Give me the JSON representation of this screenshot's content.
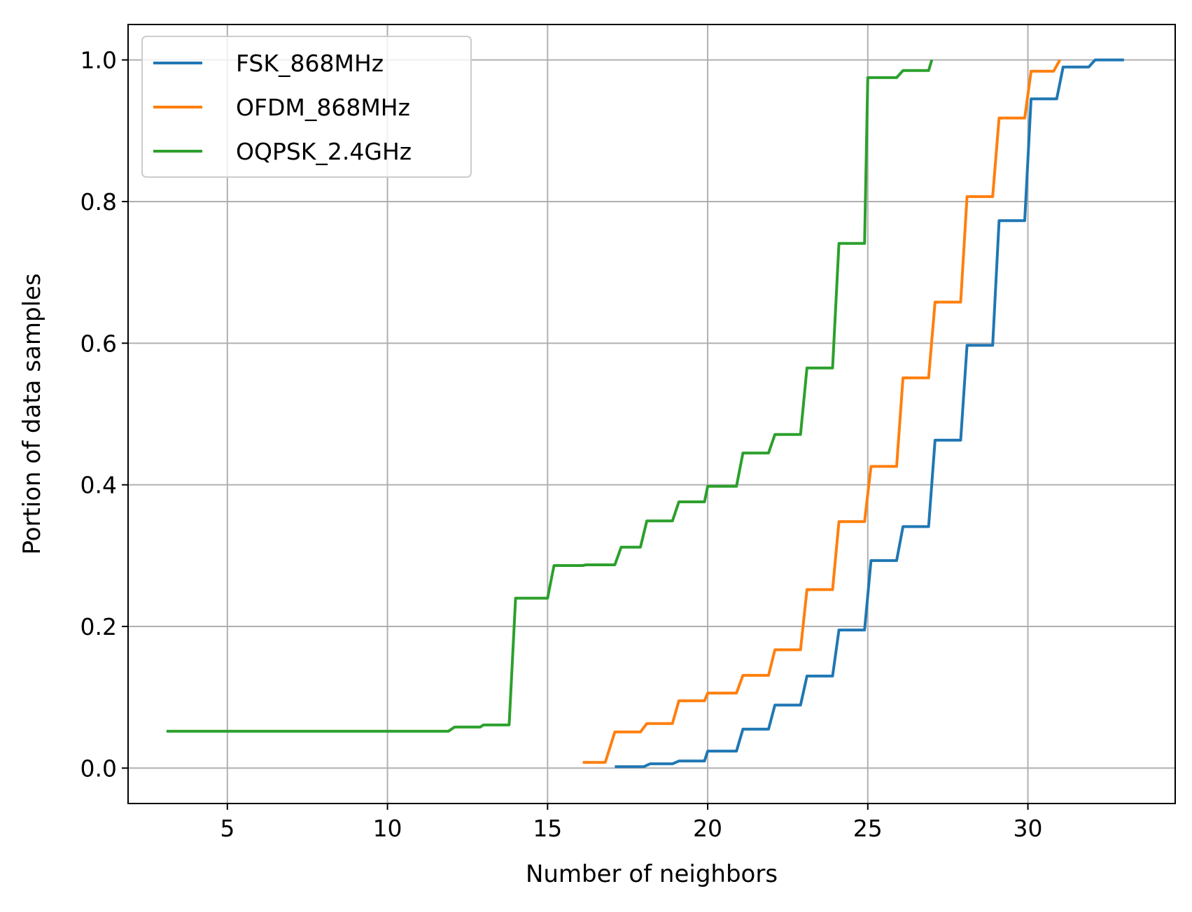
{
  "chart_data": {
    "type": "line",
    "title": "",
    "xlabel": "Number of neighbors",
    "ylabel": "Portion of data samples",
    "xlim": [
      1.9,
      34.6
    ],
    "ylim": [
      -0.05,
      1.05
    ],
    "xticks": [
      5,
      10,
      15,
      20,
      25,
      30
    ],
    "xtick_labels": [
      "5",
      "10",
      "15",
      "20",
      "25",
      "30"
    ],
    "yticks": [
      0.0,
      0.2,
      0.4,
      0.6,
      0.8,
      1.0
    ],
    "ytick_labels": [
      "0.0",
      "0.2",
      "0.4",
      "0.6",
      "0.8",
      "1.0"
    ],
    "grid": true,
    "legend_position": "top-left",
    "series": [
      {
        "name": "FSK_868MHz",
        "color": "#1f77b4",
        "x": [
          17.1,
          18.0,
          18.2,
          18.9,
          19.1,
          19.9,
          20.0,
          20.9,
          21.1,
          21.9,
          22.1,
          22.9,
          23.1,
          23.9,
          24.1,
          24.9,
          25.1,
          25.9,
          26.1,
          26.9,
          27.1,
          27.9,
          28.1,
          28.9,
          29.1,
          29.9,
          30.1,
          30.9,
          31.1,
          31.9,
          32.1,
          33.0
        ],
        "y": [
          0.002,
          0.002,
          0.006,
          0.006,
          0.01,
          0.01,
          0.024,
          0.024,
          0.055,
          0.055,
          0.089,
          0.089,
          0.13,
          0.13,
          0.195,
          0.195,
          0.293,
          0.293,
          0.341,
          0.341,
          0.463,
          0.463,
          0.597,
          0.597,
          0.773,
          0.773,
          0.945,
          0.945,
          0.99,
          0.99,
          1.0,
          1.0
        ]
      },
      {
        "name": "OFDM_868MHz",
        "color": "#ff7f0e",
        "x": [
          16.1,
          16.8,
          17.1,
          17.9,
          18.1,
          18.9,
          19.1,
          19.9,
          20.0,
          20.9,
          21.1,
          21.9,
          22.1,
          22.9,
          23.1,
          23.9,
          24.1,
          24.9,
          25.1,
          25.9,
          26.1,
          26.9,
          27.1,
          27.9,
          28.1,
          28.9,
          29.1,
          29.9,
          30.1,
          30.8,
          31.0
        ],
        "y": [
          0.008,
          0.008,
          0.051,
          0.051,
          0.063,
          0.063,
          0.095,
          0.095,
          0.106,
          0.106,
          0.131,
          0.131,
          0.167,
          0.167,
          0.252,
          0.252,
          0.348,
          0.348,
          0.426,
          0.426,
          0.551,
          0.551,
          0.658,
          0.658,
          0.807,
          0.807,
          0.918,
          0.918,
          0.984,
          0.984,
          1.0
        ]
      },
      {
        "name": "OQPSK_2.4GHz",
        "color": "#2ca02c",
        "x": [
          3.1,
          11.9,
          12.1,
          12.9,
          13.0,
          13.8,
          14.0,
          15.0,
          15.2,
          16.1,
          16.2,
          17.1,
          17.3,
          17.9,
          18.1,
          18.9,
          19.1,
          19.9,
          20.0,
          20.9,
          21.1,
          21.9,
          22.1,
          22.9,
          23.1,
          23.9,
          24.1,
          24.9,
          25.0,
          25.9,
          26.1,
          26.9,
          27.0
        ],
        "y": [
          0.052,
          0.052,
          0.058,
          0.058,
          0.061,
          0.061,
          0.24,
          0.24,
          0.286,
          0.286,
          0.287,
          0.287,
          0.312,
          0.312,
          0.349,
          0.349,
          0.376,
          0.376,
          0.398,
          0.398,
          0.445,
          0.445,
          0.471,
          0.471,
          0.565,
          0.565,
          0.741,
          0.741,
          0.975,
          0.975,
          0.985,
          0.985,
          1.0
        ]
      }
    ]
  }
}
